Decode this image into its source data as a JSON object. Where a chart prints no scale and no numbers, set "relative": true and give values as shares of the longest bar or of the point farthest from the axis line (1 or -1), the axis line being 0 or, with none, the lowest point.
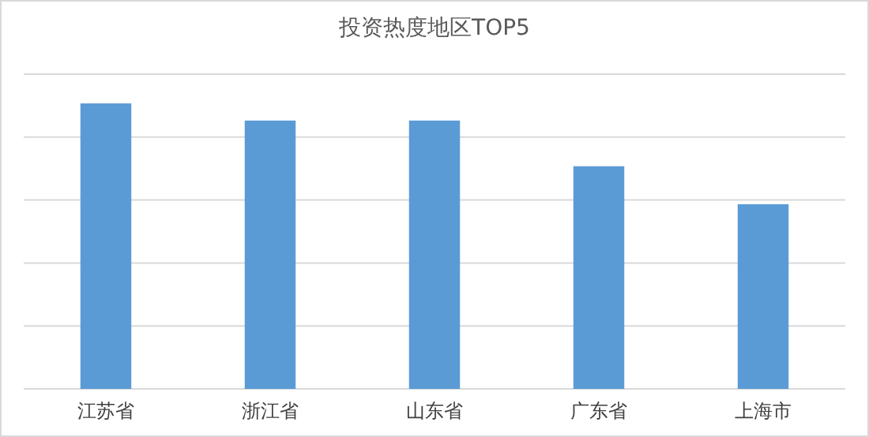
{
  "chart_data": {
    "type": "bar",
    "title": "投资热度地区TOP5",
    "categories": [
      "江苏省",
      "浙江省",
      "山东省",
      "广东省",
      "上海市"
    ],
    "values": [
      1,
      0.94,
      0.94,
      0.78,
      0.647
    ],
    "color": "#5b9bd5",
    "relative": true,
    "grid": "y"
  }
}
